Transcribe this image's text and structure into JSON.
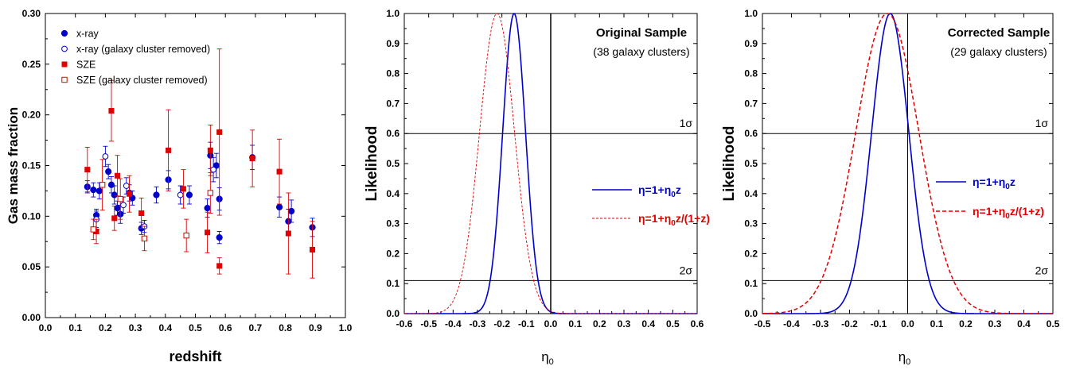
{
  "chart_data": [
    {
      "type": "scatter",
      "xlabel": "redshift",
      "ylabel": "Gas mass fraction",
      "xlim": [
        0.0,
        1.0
      ],
      "ylim": [
        0.0,
        0.3
      ],
      "xticks": [
        "0.0",
        "0.1",
        "0.2",
        "0.3",
        "0.4",
        "0.5",
        "0.6",
        "0.7",
        "0.8",
        "0.9",
        "1.0"
      ],
      "yticks": [
        "0.00",
        "0.05",
        "0.10",
        "0.15",
        "0.20",
        "0.25",
        "0.30"
      ],
      "legend_position": "top-left",
      "series": [
        {
          "name": "x-ray",
          "color": "#0000cc",
          "marker": "filled-circle",
          "points": [
            {
              "x": 0.14,
              "y": 0.129,
              "e": 0.006
            },
            {
              "x": 0.16,
              "y": 0.126,
              "e": 0.007
            },
            {
              "x": 0.17,
              "y": 0.101,
              "e": 0.006
            },
            {
              "x": 0.18,
              "y": 0.125,
              "e": 0.008
            },
            {
              "x": 0.21,
              "y": 0.144,
              "e": 0.007
            },
            {
              "x": 0.22,
              "y": 0.131,
              "e": 0.008
            },
            {
              "x": 0.23,
              "y": 0.121,
              "e": 0.009
            },
            {
              "x": 0.24,
              "y": 0.108,
              "e": 0.007
            },
            {
              "x": 0.25,
              "y": 0.102,
              "e": 0.009
            },
            {
              "x": 0.28,
              "y": 0.123,
              "e": 0.008
            },
            {
              "x": 0.29,
              "y": 0.118,
              "e": 0.007
            },
            {
              "x": 0.32,
              "y": 0.088,
              "e": 0.006
            },
            {
              "x": 0.37,
              "y": 0.121,
              "e": 0.008
            },
            {
              "x": 0.41,
              "y": 0.136,
              "e": 0.009
            },
            {
              "x": 0.48,
              "y": 0.121,
              "e": 0.009
            },
            {
              "x": 0.54,
              "y": 0.108,
              "e": 0.009
            },
            {
              "x": 0.55,
              "y": 0.16,
              "e": 0.013
            },
            {
              "x": 0.57,
              "y": 0.15,
              "e": 0.012
            },
            {
              "x": 0.58,
              "y": 0.079,
              "e": 0.006
            },
            {
              "x": 0.58,
              "y": 0.117,
              "e": 0.011
            },
            {
              "x": 0.69,
              "y": 0.158,
              "e": 0.012
            },
            {
              "x": 0.78,
              "y": 0.109,
              "e": 0.01
            },
            {
              "x": 0.81,
              "y": 0.095,
              "e": 0.012
            },
            {
              "x": 0.82,
              "y": 0.105,
              "e": 0.011
            },
            {
              "x": 0.89,
              "y": 0.089,
              "e": 0.009
            }
          ]
        },
        {
          "name": "x-ray (galaxy cluster removed)",
          "color": "#0000cc",
          "marker": "open-circle",
          "points": [
            {
              "x": 0.17,
              "y": 0.097,
              "e": 0.008
            },
            {
              "x": 0.2,
              "y": 0.159,
              "e": 0.01
            },
            {
              "x": 0.26,
              "y": 0.111,
              "e": 0.008
            },
            {
              "x": 0.27,
              "y": 0.13,
              "e": 0.008
            },
            {
              "x": 0.33,
              "y": 0.09,
              "e": 0.006
            },
            {
              "x": 0.45,
              "y": 0.121,
              "e": 0.009
            },
            {
              "x": 0.56,
              "y": 0.146,
              "e": 0.012
            }
          ]
        },
        {
          "name": "SZE",
          "color": "#e00000",
          "marker": "filled-square",
          "points": [
            {
              "x": 0.14,
              "y": 0.146,
              "e": 0.022
            },
            {
              "x": 0.17,
              "y": 0.085,
              "e": 0.012
            },
            {
              "x": 0.22,
              "y": 0.204,
              "e": 0.03
            },
            {
              "x": 0.23,
              "y": 0.098,
              "e": 0.012
            },
            {
              "x": 0.24,
              "y": 0.14,
              "e": 0.02
            },
            {
              "x": 0.28,
              "y": 0.122,
              "e": 0.018
            },
            {
              "x": 0.32,
              "y": 0.103,
              "e": 0.015
            },
            {
              "x": 0.41,
              "y": 0.165,
              "e": 0.04
            },
            {
              "x": 0.46,
              "y": 0.127,
              "e": 0.019
            },
            {
              "x": 0.54,
              "y": 0.084,
              "e": 0.02
            },
            {
              "x": 0.55,
              "y": 0.165,
              "e": 0.025
            },
            {
              "x": 0.58,
              "y": 0.183,
              "e": 0.082
            },
            {
              "x": 0.58,
              "y": 0.051,
              "e": 0.008
            },
            {
              "x": 0.69,
              "y": 0.157,
              "e": 0.028
            },
            {
              "x": 0.78,
              "y": 0.144,
              "e": 0.032
            },
            {
              "x": 0.81,
              "y": 0.083,
              "e": 0.04
            },
            {
              "x": 0.89,
              "y": 0.067,
              "e": 0.028
            }
          ]
        },
        {
          "name": "SZE (galaxy cluster removed)",
          "color": "#e00000",
          "marker": "open-square",
          "points": [
            {
              "x": 0.16,
              "y": 0.087,
              "e": 0.01
            },
            {
              "x": 0.19,
              "y": 0.131,
              "e": 0.025
            },
            {
              "x": 0.25,
              "y": 0.117,
              "e": 0.02
            },
            {
              "x": 0.33,
              "y": 0.078,
              "e": 0.012
            },
            {
              "x": 0.47,
              "y": 0.081,
              "e": 0.016
            },
            {
              "x": 0.55,
              "y": 0.123,
              "e": 0.02
            }
          ]
        }
      ]
    },
    {
      "type": "line",
      "xlabel": "η₀",
      "ylabel": "Likelihood",
      "xlim": [
        -0.6,
        0.6
      ],
      "ylim": [
        0.0,
        1.0
      ],
      "xticks": [
        "-0.6",
        "-0.5",
        "-0.4",
        "-0.3",
        "-0.2",
        "-0.1",
        "0.0",
        "0.1",
        "0.2",
        "0.3",
        "0.4",
        "0.5",
        "0.6"
      ],
      "yticks": [
        "0.0",
        "0.1",
        "0.2",
        "0.3",
        "0.4",
        "0.5",
        "0.6",
        "0.7",
        "0.8",
        "0.9",
        "1.0"
      ],
      "annotation_title": "Original Sample",
      "annotation_sub": "(38 galaxy clusters)",
      "sigma_lines": [
        {
          "label": "1σ",
          "y": 0.6
        },
        {
          "label": "2σ",
          "y": 0.11
        }
      ],
      "vline_x": 0.0,
      "series": [
        {
          "name": "η=1+η₀z",
          "color": "#0000cc",
          "dash": "solid",
          "peak": -0.15,
          "sigma": 0.0468
        },
        {
          "name": "η=1+η₀z/(1+z)",
          "color": "#e00000",
          "dash": "dashed",
          "peak": -0.22,
          "sigma": 0.0715
        }
      ]
    },
    {
      "type": "line",
      "xlabel": "η₀",
      "ylabel": "Likelihood",
      "xlim": [
        -0.5,
        0.5
      ],
      "ylim": [
        0.0,
        1.0
      ],
      "xticks": [
        "-0.5",
        "-0.4",
        "-0.3",
        "-0.2",
        "-0.1",
        "0.0",
        "0.1",
        "0.2",
        "0.3",
        "0.4",
        "0.5"
      ],
      "yticks": [
        "0.0",
        "0.1",
        "0.2",
        "0.3",
        "0.4",
        "0.5",
        "0.6",
        "0.7",
        "0.8",
        "0.9",
        "1.0"
      ],
      "annotation_title": "Corrected Sample",
      "annotation_sub": "(29 galaxy clusters)",
      "sigma_lines": [
        {
          "label": "1σ",
          "y": 0.6
        },
        {
          "label": "2σ",
          "y": 0.11
        }
      ],
      "vline_x": 0.0,
      "series": [
        {
          "name": "η=1+η₀z",
          "color": "#0000cc",
          "dash": "solid",
          "peak": -0.06,
          "sigma": 0.064
        },
        {
          "name": "η=1+η₀z/(1+z)",
          "color": "#e00000",
          "dash": "dashed",
          "peak": -0.07,
          "sigma": 0.1085
        }
      ]
    }
  ]
}
